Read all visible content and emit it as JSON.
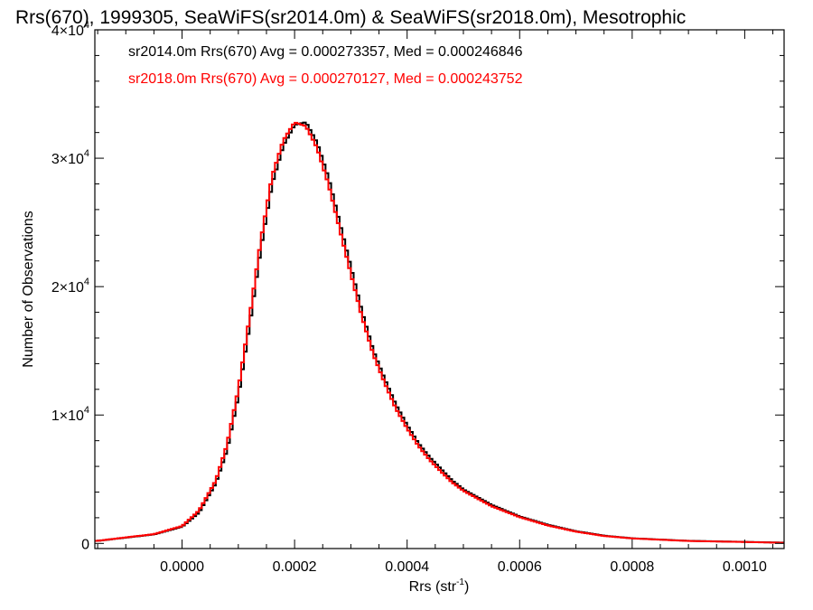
{
  "chart_data": {
    "type": "line",
    "title": "Rrs(670), 1999305, SeaWiFS(sr2014.0m) & SeaWiFS(sr2018.0m), Mesotrophic",
    "xlabel": "Rrs (str",
    "xlabel_sup": "-1",
    "xlabel_end": ")",
    "ylabel": "Number of Observations",
    "xlim": [
      -0.000155,
      0.00107
    ],
    "ylim": [
      -400,
      40000
    ],
    "xticks": [
      {
        "value": 0.0,
        "label": "0.0000"
      },
      {
        "value": 0.0002,
        "label": "0.0002"
      },
      {
        "value": 0.0004,
        "label": "0.0004"
      },
      {
        "value": 0.0006,
        "label": "0.0006"
      },
      {
        "value": 0.0008,
        "label": "0.0008"
      },
      {
        "value": 0.001,
        "label": "0.0010"
      }
    ],
    "yticks": [
      {
        "value": 0,
        "mant": "0",
        "exp": ""
      },
      {
        "value": 10000,
        "mant": "1×10",
        "exp": "4"
      },
      {
        "value": 20000,
        "mant": "2×10",
        "exp": "4"
      },
      {
        "value": 30000,
        "mant": "3×10",
        "exp": "4"
      },
      {
        "value": 40000,
        "mant": "4×10",
        "exp": "4"
      }
    ],
    "grid": false,
    "legend_position": "top-left",
    "series": [
      {
        "name": "sr2014.0m Rrs(670) Avg = 0.000273357, Med = 0.000246846",
        "color": "#000000",
        "x": [
          -0.00015,
          -0.0001,
          -5e-05,
          0.0,
          3e-05,
          6e-05,
          8e-05,
          0.0001,
          0.00012,
          0.00014,
          0.00016,
          0.00018,
          0.0002,
          0.00022,
          0.00024,
          0.00026,
          0.00028,
          0.0003,
          0.00032,
          0.00034,
          0.00036,
          0.00038,
          0.0004,
          0.00042,
          0.00044,
          0.00046,
          0.00048,
          0.0005,
          0.00055,
          0.0006,
          0.00065,
          0.0007,
          0.00075,
          0.0008,
          0.0009,
          0.001,
          0.00107
        ],
        "y": [
          200,
          450,
          700,
          1300,
          2400,
          4700,
          7300,
          11500,
          17000,
          23000,
          28000,
          31000,
          32600,
          32800,
          31200,
          28500,
          25000,
          21500,
          18000,
          15000,
          12800,
          10800,
          9200,
          7800,
          6700,
          5800,
          4900,
          4200,
          3000,
          2100,
          1450,
          950,
          600,
          400,
          200,
          120,
          60
        ]
      },
      {
        "name": "sr2018.0m Rrs(670) Avg = 0.000270127, Med = 0.000243752",
        "color": "#ff0000",
        "x": [
          -0.00015,
          -0.0001,
          -5e-05,
          0.0,
          3e-05,
          6e-05,
          8e-05,
          0.0001,
          0.00012,
          0.00014,
          0.00016,
          0.00018,
          0.0002,
          0.00022,
          0.00024,
          0.00026,
          0.00028,
          0.0003,
          0.00032,
          0.00034,
          0.00036,
          0.00038,
          0.0004,
          0.00042,
          0.00044,
          0.00046,
          0.00048,
          0.0005,
          0.00055,
          0.0006,
          0.00065,
          0.0007,
          0.00075,
          0.0008,
          0.0009,
          0.001,
          0.00107
        ],
        "y": [
          200,
          470,
          720,
          1350,
          2550,
          4900,
          7700,
          12000,
          17600,
          23600,
          28600,
          31400,
          32800,
          32500,
          30800,
          28000,
          24500,
          21000,
          17600,
          14700,
          12500,
          10500,
          8950,
          7600,
          6500,
          5600,
          4750,
          4100,
          2900,
          2050,
          1400,
          920,
          580,
          390,
          190,
          110,
          50
        ]
      }
    ]
  }
}
